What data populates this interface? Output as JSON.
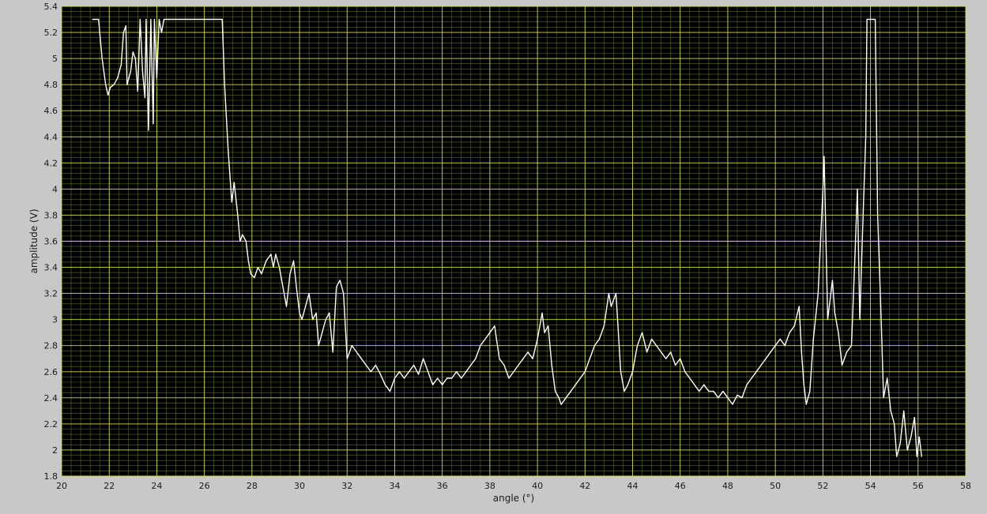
{
  "chart_data": {
    "type": "line",
    "xlabel": "angle (°)",
    "ylabel": "amplitude (V)",
    "xlim": [
      20,
      58
    ],
    "ylim": [
      1.8,
      5.4
    ],
    "x_ticks": [
      "20",
      "22",
      "24",
      "26",
      "28",
      "30",
      "32",
      "34",
      "36",
      "38",
      "40",
      "42",
      "44",
      "46",
      "48",
      "50",
      "52",
      "54",
      "56",
      "58"
    ],
    "y_ticks": [
      "1.8",
      "2",
      "2.2",
      "2.4",
      "2.6",
      "2.8",
      "3",
      "3.2",
      "3.4",
      "3.6",
      "3.8",
      "4",
      "4.2",
      "4.4",
      "4.6",
      "4.8",
      "5",
      "5.2",
      "5.4"
    ],
    "grid": true,
    "colors": {
      "plot_background": "#000000",
      "grid_major": "#d6d84a",
      "grid_minor": "#5e6a22",
      "trace": "#ffffff",
      "frame": "#c8c8c8"
    },
    "series": [
      {
        "points": [
          [
            21.3,
            5.3
          ],
          [
            21.55,
            5.3
          ],
          [
            21.7,
            5.0
          ],
          [
            21.85,
            4.8
          ],
          [
            21.95,
            4.72
          ],
          [
            22.05,
            4.78
          ],
          [
            22.2,
            4.8
          ],
          [
            22.35,
            4.85
          ],
          [
            22.5,
            4.95
          ],
          [
            22.6,
            5.2
          ],
          [
            22.7,
            5.25
          ],
          [
            22.75,
            4.8
          ],
          [
            22.9,
            4.9
          ],
          [
            23.0,
            5.05
          ],
          [
            23.1,
            5.0
          ],
          [
            23.2,
            4.75
          ],
          [
            23.3,
            5.3
          ],
          [
            23.4,
            4.9
          ],
          [
            23.5,
            4.7
          ],
          [
            23.55,
            5.3
          ],
          [
            23.65,
            4.45
          ],
          [
            23.75,
            5.3
          ],
          [
            23.85,
            4.5
          ],
          [
            23.9,
            5.3
          ],
          [
            24.0,
            4.85
          ],
          [
            24.1,
            5.3
          ],
          [
            24.2,
            5.2
          ],
          [
            24.3,
            5.3
          ],
          [
            26.75,
            5.3
          ],
          [
            26.85,
            4.8
          ],
          [
            27.0,
            4.3
          ],
          [
            27.15,
            3.9
          ],
          [
            27.25,
            4.05
          ],
          [
            27.4,
            3.8
          ],
          [
            27.5,
            3.6
          ],
          [
            27.6,
            3.65
          ],
          [
            27.75,
            3.6
          ],
          [
            27.85,
            3.45
          ],
          [
            27.95,
            3.35
          ],
          [
            28.1,
            3.32
          ],
          [
            28.25,
            3.4
          ],
          [
            28.4,
            3.35
          ],
          [
            28.6,
            3.45
          ],
          [
            28.8,
            3.5
          ],
          [
            28.9,
            3.4
          ],
          [
            29.0,
            3.5
          ],
          [
            29.15,
            3.4
          ],
          [
            29.3,
            3.25
          ],
          [
            29.45,
            3.1
          ],
          [
            29.6,
            3.35
          ],
          [
            29.75,
            3.45
          ],
          [
            29.9,
            3.2
          ],
          [
            30.0,
            3.05
          ],
          [
            30.1,
            3.0
          ],
          [
            30.25,
            3.1
          ],
          [
            30.4,
            3.2
          ],
          [
            30.55,
            3.0
          ],
          [
            30.7,
            3.05
          ],
          [
            30.8,
            2.8
          ],
          [
            30.95,
            2.9
          ],
          [
            31.1,
            3.0
          ],
          [
            31.25,
            3.05
          ],
          [
            31.4,
            2.75
          ],
          [
            31.55,
            3.25
          ],
          [
            31.7,
            3.3
          ],
          [
            31.85,
            3.2
          ],
          [
            32.0,
            2.7
          ],
          [
            32.2,
            2.8
          ],
          [
            32.4,
            2.75
          ],
          [
            32.6,
            2.7
          ],
          [
            32.8,
            2.65
          ],
          [
            33.0,
            2.6
          ],
          [
            33.2,
            2.65
          ],
          [
            33.4,
            2.58
          ],
          [
            33.6,
            2.5
          ],
          [
            33.8,
            2.45
          ],
          [
            34.0,
            2.55
          ],
          [
            34.2,
            2.6
          ],
          [
            34.4,
            2.55
          ],
          [
            34.6,
            2.6
          ],
          [
            34.8,
            2.65
          ],
          [
            35.0,
            2.58
          ],
          [
            35.2,
            2.7
          ],
          [
            35.4,
            2.6
          ],
          [
            35.6,
            2.5
          ],
          [
            35.8,
            2.55
          ],
          [
            36.0,
            2.5
          ],
          [
            36.2,
            2.55
          ],
          [
            36.4,
            2.55
          ],
          [
            36.6,
            2.6
          ],
          [
            36.8,
            2.55
          ],
          [
            37.0,
            2.6
          ],
          [
            37.2,
            2.65
          ],
          [
            37.4,
            2.7
          ],
          [
            37.6,
            2.8
          ],
          [
            37.8,
            2.85
          ],
          [
            38.0,
            2.9
          ],
          [
            38.2,
            2.95
          ],
          [
            38.4,
            2.7
          ],
          [
            38.6,
            2.65
          ],
          [
            38.8,
            2.55
          ],
          [
            39.0,
            2.6
          ],
          [
            39.2,
            2.65
          ],
          [
            39.4,
            2.7
          ],
          [
            39.6,
            2.75
          ],
          [
            39.8,
            2.7
          ],
          [
            40.0,
            2.85
          ],
          [
            40.2,
            3.05
          ],
          [
            40.3,
            2.9
          ],
          [
            40.45,
            2.95
          ],
          [
            40.6,
            2.65
          ],
          [
            40.75,
            2.45
          ],
          [
            40.9,
            2.4
          ],
          [
            41.0,
            2.35
          ],
          [
            41.2,
            2.4
          ],
          [
            41.4,
            2.45
          ],
          [
            41.6,
            2.5
          ],
          [
            41.8,
            2.55
          ],
          [
            42.0,
            2.6
          ],
          [
            42.2,
            2.7
          ],
          [
            42.4,
            2.8
          ],
          [
            42.6,
            2.85
          ],
          [
            42.8,
            2.95
          ],
          [
            43.0,
            3.2
          ],
          [
            43.1,
            3.1
          ],
          [
            43.3,
            3.2
          ],
          [
            43.5,
            2.6
          ],
          [
            43.65,
            2.45
          ],
          [
            43.8,
            2.5
          ],
          [
            44.0,
            2.6
          ],
          [
            44.2,
            2.8
          ],
          [
            44.4,
            2.9
          ],
          [
            44.6,
            2.75
          ],
          [
            44.8,
            2.85
          ],
          [
            45.0,
            2.8
          ],
          [
            45.2,
            2.75
          ],
          [
            45.4,
            2.7
          ],
          [
            45.6,
            2.75
          ],
          [
            45.8,
            2.65
          ],
          [
            46.0,
            2.7
          ],
          [
            46.2,
            2.6
          ],
          [
            46.4,
            2.55
          ],
          [
            46.6,
            2.5
          ],
          [
            46.8,
            2.45
          ],
          [
            47.0,
            2.5
          ],
          [
            47.2,
            2.45
          ],
          [
            47.4,
            2.45
          ],
          [
            47.6,
            2.4
          ],
          [
            47.8,
            2.45
          ],
          [
            48.0,
            2.4
          ],
          [
            48.2,
            2.35
          ],
          [
            48.4,
            2.42
          ],
          [
            48.6,
            2.4
          ],
          [
            48.8,
            2.5
          ],
          [
            49.0,
            2.55
          ],
          [
            49.2,
            2.6
          ],
          [
            49.4,
            2.65
          ],
          [
            49.6,
            2.7
          ],
          [
            49.8,
            2.75
          ],
          [
            50.0,
            2.8
          ],
          [
            50.2,
            2.85
          ],
          [
            50.4,
            2.8
          ],
          [
            50.6,
            2.9
          ],
          [
            50.8,
            2.95
          ],
          [
            51.0,
            3.1
          ],
          [
            51.1,
            2.75
          ],
          [
            51.2,
            2.5
          ],
          [
            51.3,
            2.35
          ],
          [
            51.45,
            2.45
          ],
          [
            51.6,
            2.85
          ],
          [
            51.8,
            3.2
          ],
          [
            52.0,
            4.0
          ],
          [
            52.05,
            4.25
          ],
          [
            52.2,
            3.0
          ],
          [
            52.4,
            3.3
          ],
          [
            52.5,
            3.05
          ],
          [
            52.65,
            2.9
          ],
          [
            52.8,
            2.65
          ],
          [
            53.0,
            2.75
          ],
          [
            53.2,
            2.8
          ],
          [
            53.35,
            3.5
          ],
          [
            53.45,
            4.0
          ],
          [
            53.55,
            3.0
          ],
          [
            53.7,
            3.85
          ],
          [
            53.8,
            4.4
          ],
          [
            53.85,
            5.3
          ],
          [
            54.2,
            5.3
          ],
          [
            54.3,
            3.8
          ],
          [
            54.45,
            3.0
          ],
          [
            54.55,
            2.4
          ],
          [
            54.7,
            2.55
          ],
          [
            54.85,
            2.3
          ],
          [
            55.0,
            2.2
          ],
          [
            55.1,
            1.95
          ],
          [
            55.25,
            2.05
          ],
          [
            55.4,
            2.3
          ],
          [
            55.55,
            2.0
          ],
          [
            55.7,
            2.1
          ],
          [
            55.85,
            2.25
          ],
          [
            55.95,
            1.95
          ],
          [
            56.05,
            2.1
          ],
          [
            56.15,
            1.95
          ]
        ]
      }
    ]
  }
}
